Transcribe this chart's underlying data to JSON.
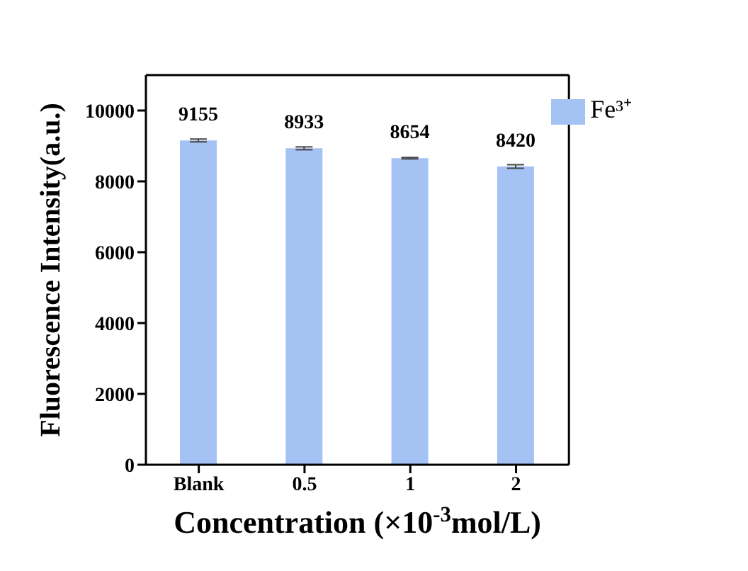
{
  "chart_data": {
    "type": "bar",
    "xlabel": "Concentration (×10$^{-3}$mol/L)",
    "ylabel": "Fluorescence Intensity(a.u.)",
    "categories": [
      "Blank",
      "0.5",
      "1",
      "2"
    ],
    "series": [
      {
        "name": "Fe³⁺",
        "color": "#a4c2f4",
        "values": [
          9155,
          8933,
          8654,
          8420
        ],
        "errors": [
          40,
          40,
          20,
          50
        ]
      }
    ],
    "ylim": [
      0,
      11000
    ],
    "yticks": [
      0,
      2000,
      4000,
      6000,
      8000,
      10000
    ],
    "data_labels": true,
    "legend": "top right",
    "grid": false
  }
}
